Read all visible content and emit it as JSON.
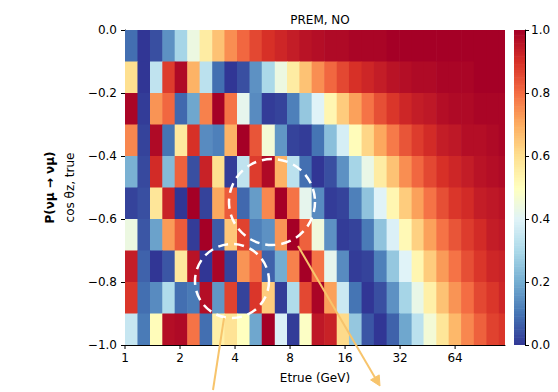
{
  "chart_data": {
    "type": "heatmap",
    "title": "PREM, NO",
    "xlabel": "Etrue (GeV)",
    "ylabel": "cos θz, true",
    "log": "x",
    "grid": false,
    "xlim": [
      1,
      120
    ],
    "xticks": [
      1,
      2,
      4,
      8,
      16,
      32,
      64
    ],
    "ylim": [
      -1,
      0
    ],
    "yticks": [
      {
        "value": -1,
        "label": "−1.0"
      },
      {
        "value": -0.8,
        "label": "−0.8"
      },
      {
        "value": -0.6,
        "label": "−0.6"
      },
      {
        "value": -0.4,
        "label": "−0.4"
      },
      {
        "value": -0.2,
        "label": "−0.2"
      },
      {
        "value": 0,
        "label": "0.0"
      }
    ],
    "colorbar": {
      "label": "P(νμ → νμ)",
      "lim": [
        0,
        1
      ],
      "ticks": [
        {
          "value": 0,
          "label": "0.0"
        },
        {
          "value": 0.2,
          "label": "0.2"
        },
        {
          "value": 0.4,
          "label": "0.4"
        },
        {
          "value": 0.6,
          "label": "0.6"
        },
        {
          "value": 0.8,
          "label": "0.8"
        },
        {
          "value": 1,
          "label": "1.0"
        }
      ]
    },
    "x_edges": [
      1,
      1.17,
      1.37,
      1.6,
      1.87,
      2.19,
      2.56,
      3.0,
      3.5,
      4.1,
      4.8,
      5.6,
      6.6,
      7.7,
      9.0,
      10.5,
      12.3,
      14.4,
      16.8,
      19.7,
      23,
      27,
      31.6,
      37,
      43,
      50.5,
      59,
      69,
      81,
      95,
      111,
      120
    ],
    "y_edges": [
      0,
      -0.1,
      -0.2,
      -0.3,
      -0.4,
      -0.5,
      -0.6,
      -0.7,
      -0.8,
      -0.9,
      -1.0
    ],
    "values": [
      [
        0.09,
        0.0,
        0.04,
        0.15,
        0.29,
        0.44,
        0.56,
        0.66,
        0.75,
        0.81,
        0.86,
        0.9,
        0.92,
        0.94,
        0.96,
        0.97,
        0.98,
        0.98,
        0.99,
        0.99,
        0.99,
        1.0,
        1.0,
        1.0,
        1.0,
        1.0,
        1.0,
        1.0,
        1.0,
        1.0,
        1.0
      ],
      [
        0.6,
        0.0,
        0.34,
        0.88,
        0.98,
        0.69,
        0.33,
        0.09,
        0.0,
        0.04,
        0.15,
        0.3,
        0.44,
        0.56,
        0.66,
        0.75,
        0.81,
        0.86,
        0.9,
        0.92,
        0.94,
        0.96,
        0.97,
        0.98,
        0.98,
        0.99,
        0.99,
        0.99,
        1.0,
        1.0,
        1.0
      ],
      [
        0.99,
        0.01,
        0.74,
        0.81,
        0.08,
        0.19,
        0.77,
        1.0,
        0.79,
        0.42,
        0.14,
        0.01,
        0.02,
        0.12,
        0.26,
        0.4,
        0.53,
        0.64,
        0.72,
        0.79,
        0.85,
        0.89,
        0.92,
        0.94,
        0.95,
        0.97,
        0.98,
        0.98,
        0.99,
        0.99,
        0.99
      ],
      [
        0.76,
        0.02,
        0.98,
        0.1,
        0.57,
        0.9,
        0.14,
        0.12,
        0.69,
        1.0,
        0.84,
        0.46,
        0.16,
        0.02,
        0.01,
        0.1,
        0.24,
        0.38,
        0.51,
        0.62,
        0.71,
        0.78,
        0.84,
        0.88,
        0.91,
        0.94,
        0.95,
        0.97,
        0.97,
        0.98,
        0.99
      ],
      [
        0.21,
        0.03,
        0.91,
        0.23,
        0.82,
        0.04,
        0.93,
        0.6,
        0.01,
        0.34,
        0.88,
        0.98,
        0.69,
        0.33,
        0.09,
        0.0,
        0.04,
        0.15,
        0.29,
        0.43,
        0.56,
        0.66,
        0.75,
        0.81,
        0.86,
        0.9,
        0.92,
        0.94,
        0.96,
        0.97,
        0.98
      ],
      [
        0.02,
        0.04,
        0.58,
        0.93,
        0.0,
        1.0,
        0.02,
        0.71,
        0.83,
        0.08,
        0.17,
        0.76,
        1.0,
        0.79,
        0.42,
        0.14,
        0.01,
        0.02,
        0.12,
        0.25,
        0.4,
        0.53,
        0.64,
        0.72,
        0.79,
        0.85,
        0.89,
        0.91,
        0.94,
        0.95,
        0.96
      ],
      [
        0.44,
        0.05,
        0.18,
        0.73,
        0.83,
        0.01,
        1.0,
        0.06,
        0.65,
        0.87,
        0.12,
        0.15,
        0.74,
        1.0,
        0.82,
        0.45,
        0.15,
        0.01,
        0.02,
        0.11,
        0.25,
        0.39,
        0.52,
        0.63,
        0.72,
        0.79,
        0.84,
        0.88,
        0.91,
        0.94,
        0.95
      ],
      [
        0.94,
        0.07,
        0.0,
        0.05,
        0.57,
        0.96,
        0.0,
        0.99,
        0.02,
        0.74,
        0.81,
        0.07,
        0.2,
        0.77,
        1.0,
        0.79,
        0.42,
        0.14,
        0.01,
        0.02,
        0.12,
        0.26,
        0.4,
        0.53,
        0.64,
        0.73,
        0.79,
        0.85,
        0.89,
        0.92,
        0.93
      ],
      [
        0.89,
        0.09,
        0.14,
        0.31,
        0.09,
        0.11,
        0.97,
        0.16,
        0.87,
        0.02,
        0.89,
        0.64,
        0.01,
        0.31,
        0.86,
        0.99,
        0.72,
        0.36,
        0.1,
        0.0,
        0.04,
        0.15,
        0.29,
        0.43,
        0.55,
        0.66,
        0.74,
        0.8,
        0.86,
        0.89,
        0.92
      ],
      [
        0.35,
        0.11,
        0.51,
        0.97,
        0.98,
        0.79,
        0.09,
        0.55,
        0.59,
        0.5,
        0.19,
        1.0,
        0.39,
        0.01,
        0.49,
        0.95,
        0.93,
        0.61,
        0.26,
        0.05,
        0.0,
        0.07,
        0.19,
        0.33,
        0.46,
        0.58,
        0.68,
        0.76,
        0.82,
        0.87,
        0.89
      ]
    ]
  }
}
